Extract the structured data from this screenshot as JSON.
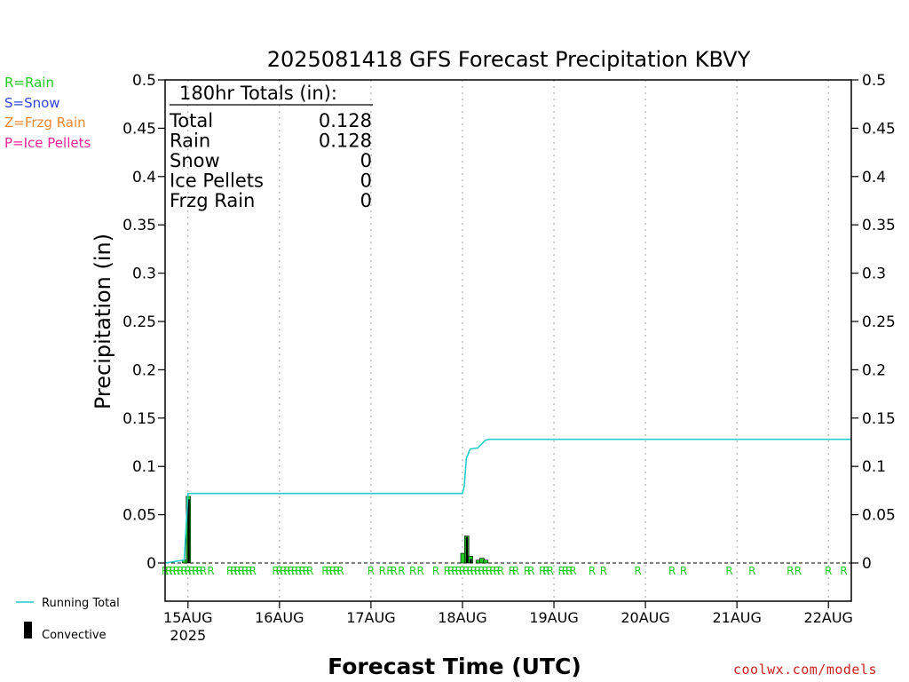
{
  "chart_data": {
    "type": "bar",
    "title": "2025081418 GFS Forecast Precipitation KBVY",
    "xlabel": "Forecast Time (UTC)",
    "ylabel": "Precipitation (in)",
    "ylim": [
      0,
      0.5
    ],
    "yticks": [
      "0",
      "0.05",
      "0.1",
      "0.15",
      "0.2",
      "0.25",
      "0.3",
      "0.35",
      "0.4",
      "0.45",
      "0.5"
    ],
    "x_ticks": [
      {
        "label": "15AUG",
        "sublabel": "2025",
        "hour": 6
      },
      {
        "label": "16AUG",
        "hour": 30
      },
      {
        "label": "17AUG",
        "hour": 54
      },
      {
        "label": "18AUG",
        "hour": 78
      },
      {
        "label": "19AUG",
        "hour": 102
      },
      {
        "label": "20AUG",
        "hour": 126
      },
      {
        "label": "21AUG",
        "hour": 150
      },
      {
        "label": "22AUG",
        "hour": 174
      }
    ],
    "xlim_hours": [
      0,
      180
    ],
    "grid": "dotted-vertical-at-days",
    "totals_box": {
      "heading": "180hr Totals (in):",
      "rows": [
        {
          "label": "Total",
          "value": "0.128"
        },
        {
          "label": "Rain",
          "value": "0.128"
        },
        {
          "label": "Snow",
          "value": "0"
        },
        {
          "label": "Ice Pellets",
          "value": "0"
        },
        {
          "label": "Frzg Rain",
          "value": "0"
        }
      ]
    },
    "precip_type_legend": [
      {
        "text": "R=Rain",
        "color": "#22cc22"
      },
      {
        "text": "S=Snow",
        "color": "#3344dd"
      },
      {
        "text": "Z=Frzg Rain",
        "color": "#ee8833"
      },
      {
        "text": "P=Ice Pellets",
        "color": "#ee2299"
      }
    ],
    "line_legend": [
      {
        "text": "Running Total",
        "color": "#22cccc",
        "kind": "line"
      },
      {
        "text": "Convective",
        "color": "#000000",
        "kind": "bar"
      }
    ],
    "series": [
      {
        "name": "Rain",
        "color": "#22cc22",
        "points": [
          {
            "hour": 5,
            "value": 0.003
          },
          {
            "hour": 6,
            "value": 0.069
          },
          {
            "hour": 78,
            "value": 0.01
          },
          {
            "hour": 79,
            "value": 0.028
          },
          {
            "hour": 80,
            "value": 0.007
          },
          {
            "hour": 82,
            "value": 0.003
          },
          {
            "hour": 83,
            "value": 0.005
          },
          {
            "hour": 84,
            "value": 0.003
          }
        ]
      },
      {
        "name": "Convective",
        "color": "#000000",
        "points": [
          {
            "hour": 6,
            "value": 0.066
          },
          {
            "hour": 79,
            "value": 0.027
          },
          {
            "hour": 80,
            "value": 0.004
          }
        ]
      }
    ],
    "running_total": {
      "name": "Running Total",
      "color": "#22cccc",
      "points": [
        [
          0,
          0
        ],
        [
          5,
          0.003
        ],
        [
          6,
          0.072
        ],
        [
          78,
          0.072
        ],
        [
          78.5,
          0.08
        ],
        [
          79,
          0.108
        ],
        [
          80,
          0.118
        ],
        [
          82,
          0.119
        ],
        [
          84,
          0.127
        ],
        [
          85,
          0.128
        ],
        [
          180,
          0.128
        ]
      ]
    },
    "ptype_markers": {
      "symbol": "R",
      "color": "#22cc22",
      "hours": [
        0,
        1,
        2,
        3,
        4,
        5,
        6,
        7,
        8,
        9,
        10,
        12,
        17,
        18,
        19,
        20,
        21,
        22,
        23,
        29,
        30,
        31,
        32,
        33,
        34,
        35,
        36,
        37,
        38,
        42,
        43,
        44,
        45,
        46,
        54,
        57,
        59,
        60,
        62,
        65,
        67,
        71,
        74,
        75,
        76,
        77,
        78,
        79,
        80,
        81,
        82,
        83,
        84,
        85,
        86,
        87,
        88,
        91,
        92,
        95,
        96,
        99,
        100,
        101,
        104,
        105,
        106,
        107,
        112,
        115,
        124,
        133,
        136,
        148,
        154,
        164,
        166,
        174,
        178
      ]
    }
  },
  "credit": "coolwx.com/models"
}
